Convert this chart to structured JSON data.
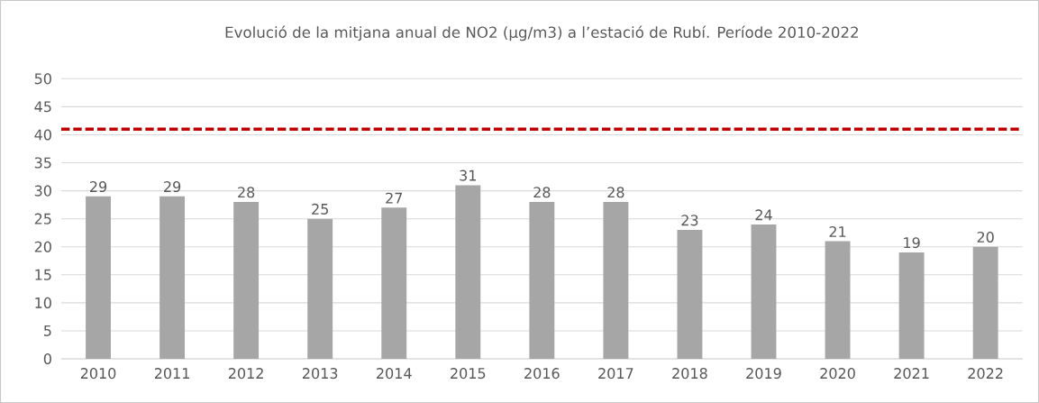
{
  "chart_data": {
    "type": "bar",
    "title": "Evolució de la mitjana anual de NO2 (µg/m3) a l’estació de Rubí. Període 2010-2022",
    "categories": [
      "2010",
      "2011",
      "2012",
      "2013",
      "2014",
      "2015",
      "2016",
      "2017",
      "2018",
      "2019",
      "2020",
      "2021",
      "2022"
    ],
    "values": [
      29,
      29,
      28,
      25,
      27,
      31,
      28,
      28,
      23,
      24,
      21,
      19,
      20
    ],
    "color": "#a6a6a6",
    "ylim": [
      0,
      50
    ],
    "yticks": [
      0,
      5,
      10,
      15,
      20,
      25,
      30,
      35,
      40,
      45,
      50
    ],
    "grid": "y",
    "data_labels": true,
    "ref_lines": [
      {
        "axis": "y",
        "value": 41,
        "color": "#c00000",
        "line_style": "dashed"
      }
    ]
  }
}
